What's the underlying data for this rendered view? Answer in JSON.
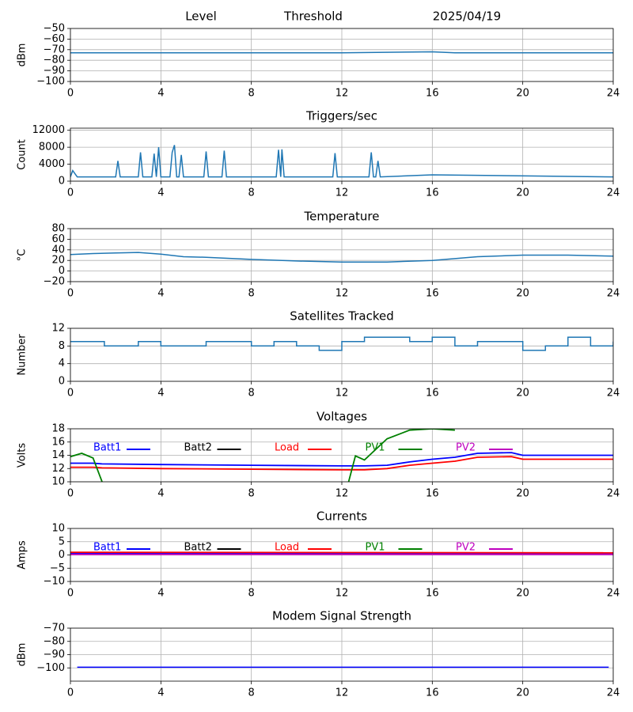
{
  "chart_data": [
    {
      "type": "line",
      "title": [
        "Level",
        "Threshold",
        "2025/04/19"
      ],
      "ylabel": "dBm",
      "grid": true,
      "color": "#1f77b4",
      "x": [
        0,
        4,
        8,
        12,
        16,
        17,
        20,
        24
      ],
      "values": [
        -73,
        -73,
        -73,
        -73,
        -72,
        -73,
        -73,
        -73
      ],
      "xlim": [
        0,
        24
      ],
      "xticks": [
        0,
        4,
        8,
        12,
        16,
        20,
        24
      ],
      "ylim": [
        -100,
        -50
      ],
      "yticks": [
        {
          "value": -100,
          "label": "−100"
        },
        {
          "value": -90,
          "label": "−90"
        },
        {
          "value": -80,
          "label": "−80"
        },
        {
          "value": -70,
          "label": "−70"
        },
        {
          "value": -60,
          "label": "−60"
        },
        {
          "value": -50,
          "label": "−50"
        }
      ]
    },
    {
      "type": "line",
      "title": "Triggers/sec",
      "ylabel": "Count",
      "grid": true,
      "color": "#1f77b4",
      "x": [
        0,
        0.1,
        0.3,
        2.0,
        2.1,
        2.2,
        3.0,
        3.1,
        3.2,
        3.6,
        3.7,
        3.8,
        3.9,
        4.0,
        4.4,
        4.5,
        4.6,
        4.7,
        4.8,
        4.9,
        5.0,
        5.9,
        6.0,
        6.1,
        6.7,
        6.8,
        6.9,
        9.1,
        9.2,
        9.3,
        9.35,
        9.45,
        11.6,
        11.7,
        11.8,
        13.2,
        13.3,
        13.4,
        13.5,
        13.6,
        13.7,
        16,
        24
      ],
      "values": [
        1000,
        2500,
        1000,
        1000,
        4800,
        1000,
        1000,
        6800,
        1000,
        1000,
        6500,
        1000,
        8000,
        1000,
        1000,
        6800,
        8500,
        1000,
        1000,
        6200,
        1000,
        1000,
        7000,
        1000,
        1000,
        7200,
        1000,
        1000,
        7400,
        1000,
        7500,
        1000,
        1000,
        6600,
        1000,
        1000,
        6800,
        1000,
        1000,
        4800,
        1000,
        1500,
        1000
      ],
      "xlim": [
        0,
        24
      ],
      "xticks": [
        0,
        4,
        8,
        12,
        16,
        20,
        24
      ],
      "ylim": [
        0,
        12500
      ],
      "yticks": [
        0,
        4000,
        8000,
        12000
      ]
    },
    {
      "type": "line",
      "title": "Temperature",
      "ylabel": "°C",
      "grid": true,
      "color": "#1f77b4",
      "x": [
        0,
        1,
        2,
        3,
        4,
        5,
        6,
        8,
        10,
        12,
        14,
        16,
        18,
        20,
        22,
        24
      ],
      "values": [
        31,
        33,
        34,
        35,
        32,
        27,
        26,
        22,
        19,
        17,
        17,
        20,
        27,
        30,
        30,
        28
      ],
      "xlim": [
        0,
        24
      ],
      "xticks": [
        0,
        4,
        8,
        12,
        16,
        20,
        24
      ],
      "ylim": [
        -20,
        80
      ],
      "yticks": [
        {
          "value": -20,
          "label": "−20"
        },
        0,
        20,
        40,
        60,
        80
      ]
    },
    {
      "type": "step",
      "title": "Satellites Tracked",
      "ylabel": "Number",
      "grid": true,
      "color": "#1f77b4",
      "x": [
        0,
        1,
        1.5,
        2,
        3,
        4,
        5,
        6,
        7,
        7.5,
        8,
        9,
        10,
        11,
        12,
        13,
        14,
        15,
        16,
        17,
        18,
        19,
        20,
        21,
        22,
        23,
        24
      ],
      "values": [
        9,
        9,
        8,
        8,
        9,
        8,
        8,
        9,
        9,
        9,
        8,
        9,
        8,
        7,
        9,
        10,
        10,
        9,
        10,
        8,
        9,
        9,
        7,
        8,
        10,
        8,
        9
      ],
      "xlim": [
        0,
        24
      ],
      "xticks": [
        0,
        4,
        8,
        12,
        16,
        20,
        24
      ],
      "ylim": [
        0,
        12
      ],
      "yticks": [
        0,
        4,
        8,
        12
      ]
    },
    {
      "type": "line",
      "title": "Voltages",
      "ylabel": "Volts",
      "grid": true,
      "legend": "top",
      "x": [
        0,
        0.5,
        1,
        1.4,
        4,
        8,
        12,
        12.3,
        12.6,
        13,
        14,
        15,
        16,
        17,
        18,
        19.5,
        20,
        24
      ],
      "series": [
        {
          "name": "Batt1",
          "color": "#0000ff",
          "values": [
            12.8,
            12.8,
            12.8,
            12.7,
            12.6,
            12.5,
            12.4,
            12.4,
            12.4,
            12.4,
            12.5,
            13,
            13.4,
            13.7,
            14.3,
            14.4,
            14,
            14
          ]
        },
        {
          "name": "Batt2",
          "color": "#000000",
          "values": [
            null,
            null,
            null,
            null,
            null,
            null,
            null,
            null,
            null,
            null,
            null,
            null,
            null,
            null,
            null,
            null,
            null,
            null
          ]
        },
        {
          "name": "Load",
          "color": "#ff0000",
          "values": [
            12.2,
            12.2,
            12.2,
            12.1,
            12,
            11.9,
            11.8,
            11.8,
            11.8,
            11.8,
            12,
            12.5,
            12.8,
            13.1,
            13.7,
            13.8,
            13.4,
            13.4
          ]
        },
        {
          "name": "PV1",
          "color": "#008000",
          "values": [
            13.8,
            14.3,
            13.6,
            10,
            null,
            null,
            null,
            10,
            13.9,
            13.3,
            16.5,
            17.8,
            18,
            17.8,
            null,
            null,
            null,
            null
          ]
        },
        {
          "name": "PV2",
          "color": "#bf00bf",
          "values": [
            null,
            null,
            null,
            null,
            null,
            null,
            null,
            null,
            null,
            null,
            null,
            null,
            null,
            null,
            null,
            null,
            null,
            null
          ]
        }
      ],
      "xlim": [
        0,
        24
      ],
      "xticks": [
        0,
        4,
        8,
        12,
        16,
        20,
        24
      ],
      "ylim": [
        10,
        18
      ],
      "yticks": [
        10,
        12,
        14,
        16,
        18
      ]
    },
    {
      "type": "line",
      "title": "Currents",
      "ylabel": "Amps",
      "grid": true,
      "legend": "top",
      "x": [
        0,
        24
      ],
      "series": [
        {
          "name": "Batt1",
          "color": "#0000ff",
          "values": [
            0.5,
            0.5
          ]
        },
        {
          "name": "Batt2",
          "color": "#000000",
          "values": [
            null,
            null
          ]
        },
        {
          "name": "Load",
          "color": "#ff0000",
          "values": [
            1,
            0.8
          ]
        },
        {
          "name": "PV1",
          "color": "#008000",
          "values": [
            null,
            null
          ]
        },
        {
          "name": "PV2",
          "color": "#bf00bf",
          "values": [
            0.2,
            0.2
          ]
        }
      ],
      "xlim": [
        0,
        24
      ],
      "xticks": [
        0,
        4,
        8,
        12,
        16,
        20,
        24
      ],
      "ylim": [
        -10,
        10
      ],
      "yticks": [
        {
          "value": -10,
          "label": "−10"
        },
        {
          "value": -5,
          "label": "−5"
        },
        0,
        5,
        10
      ]
    },
    {
      "type": "line",
      "title": "Modem Signal Strength",
      "ylabel": "dBm",
      "grid": true,
      "color": "#0000ff",
      "x": [
        0.3,
        23.8
      ],
      "values": [
        -99.5,
        -99.5
      ],
      "xlim": [
        0,
        24
      ],
      "xticks": [
        0,
        4,
        8,
        12,
        16,
        20,
        24
      ],
      "ylim": [
        -110,
        -70
      ],
      "yticks": [
        {
          "value": -100,
          "label": "−100"
        },
        {
          "value": -90,
          "label": "−90"
        },
        {
          "value": -80,
          "label": "−80"
        },
        {
          "value": -70,
          "label": "−70"
        }
      ]
    }
  ]
}
